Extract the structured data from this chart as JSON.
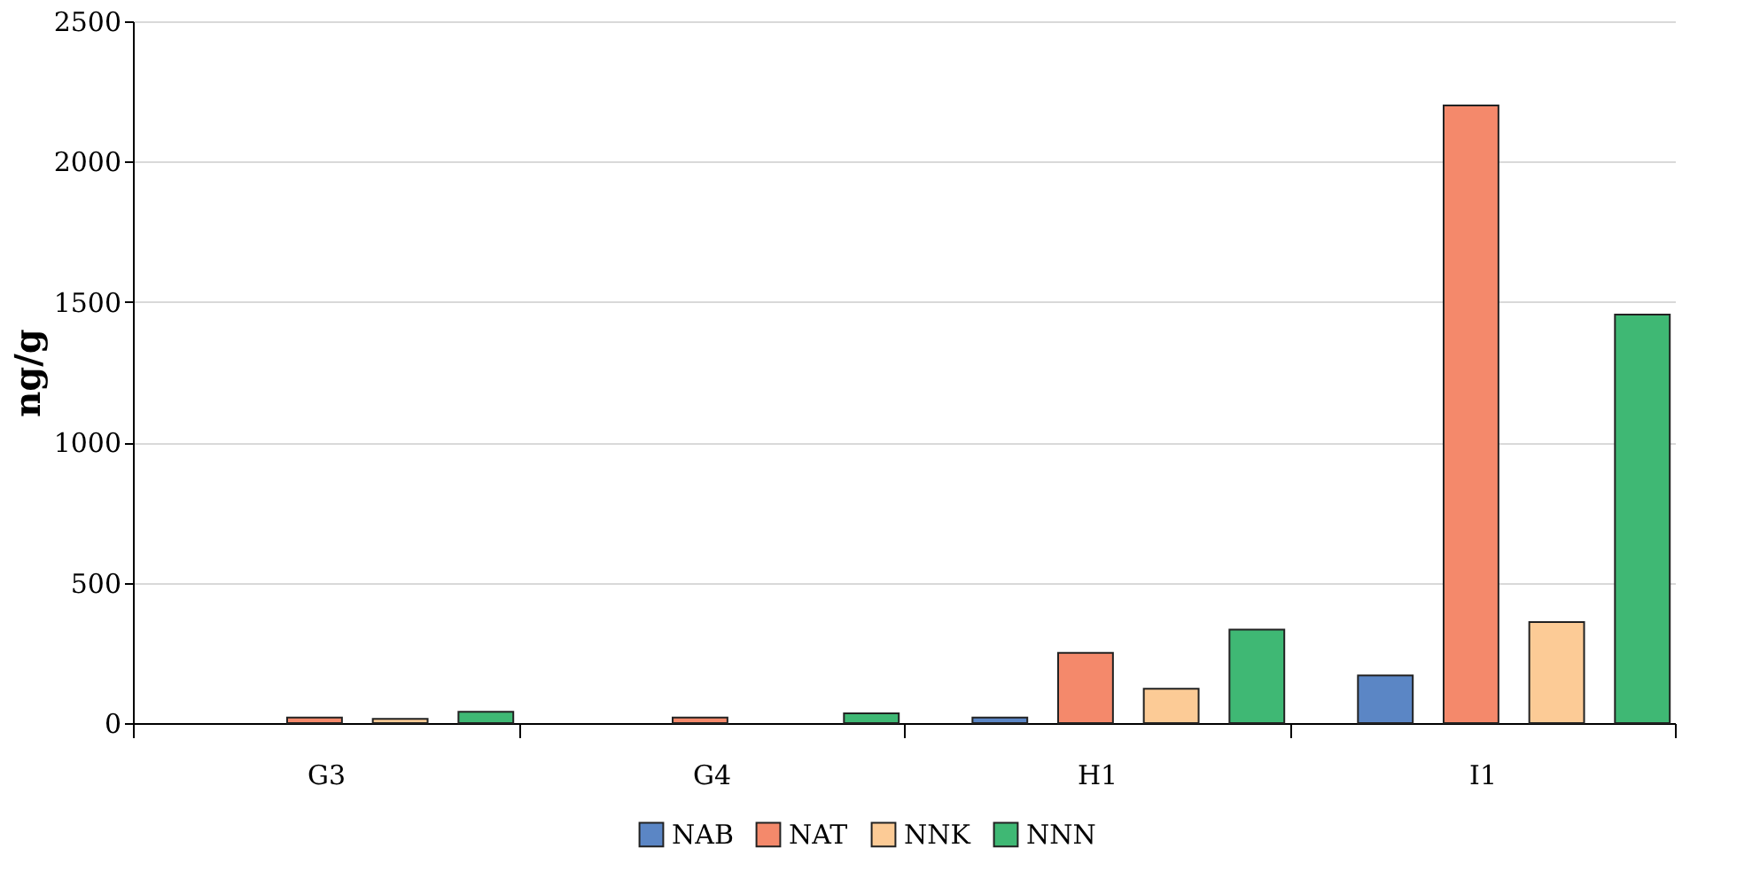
{
  "chart_data": {
    "type": "bar",
    "ylabel": "ng/g",
    "categories": [
      "G3",
      "G4",
      "H1",
      "I1"
    ],
    "series": [
      {
        "name": "NAB",
        "color": "#5b86c5",
        "values": [
          null,
          null,
          20,
          170
        ]
      },
      {
        "name": "NAT",
        "color": "#f4896b",
        "values": [
          20,
          20,
          250,
          2200
        ]
      },
      {
        "name": "NNK",
        "color": "#fccb96",
        "values": [
          15,
          null,
          122,
          360
        ]
      },
      {
        "name": "NNN",
        "color": "#3fb874",
        "values": [
          40,
          35,
          333,
          1455
        ]
      }
    ],
    "ylim": [
      0,
      2500
    ],
    "yticks": [
      0,
      500,
      1000,
      1500,
      2000,
      2500
    ],
    "grid": "y",
    "legend": "bottom"
  }
}
